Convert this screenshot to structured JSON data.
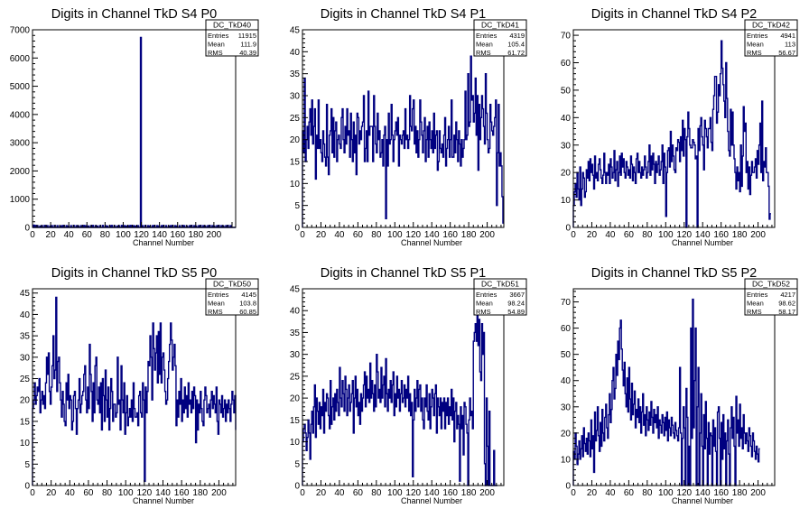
{
  "chart_data": [
    {
      "type": "histogram",
      "title": "Digits in Channel TkD S4 P0",
      "xlabel": "Channel Number",
      "xlim": [
        0,
        224
      ],
      "ylim": [
        0,
        7000
      ],
      "xticks": [
        0,
        20,
        40,
        60,
        80,
        100,
        120,
        140,
        160,
        180,
        200
      ],
      "yticks": [
        1000,
        2000,
        3000,
        4000,
        5000,
        6000,
        7000
      ],
      "stats": {
        "name": "DC_TkD40",
        "entries": "11915",
        "mean": "111.9",
        "rms": "40.39"
      },
      "bin_width": 1,
      "x_start": 0,
      "values": [
        0,
        80,
        0,
        70,
        0,
        60,
        0,
        0,
        50,
        0,
        60,
        0,
        0,
        70,
        0,
        0,
        60,
        0,
        0,
        50,
        0,
        60,
        0,
        0,
        70,
        0,
        0,
        60,
        0,
        0,
        50,
        0,
        60,
        0,
        70,
        0,
        0,
        60,
        0,
        50,
        0,
        0,
        60,
        0,
        0,
        70,
        0,
        0,
        60,
        0,
        50,
        0,
        0,
        60,
        0,
        0,
        70,
        0,
        60,
        0,
        0,
        50,
        0,
        0,
        60,
        0,
        70,
        0,
        0,
        60,
        0,
        50,
        0,
        0,
        60,
        0,
        0,
        70,
        0,
        0,
        60,
        0,
        50,
        0,
        0,
        60,
        0,
        70,
        0,
        0,
        60,
        0,
        0,
        50,
        0,
        60,
        0,
        0,
        70,
        0,
        0,
        60,
        0,
        50,
        0,
        0,
        60,
        0,
        70,
        0,
        0,
        60,
        0,
        50,
        0,
        0,
        60,
        0,
        0,
        6730,
        0,
        60,
        0,
        0,
        70,
        0,
        0,
        60,
        0,
        50,
        0,
        0,
        60,
        0,
        70,
        0,
        0,
        60,
        0,
        50,
        0,
        0,
        60,
        0,
        70,
        0,
        0,
        60,
        0,
        0,
        50,
        0,
        60,
        0,
        70,
        0,
        0,
        60,
        0,
        50,
        0,
        0,
        60,
        0,
        0,
        70,
        0,
        60,
        0,
        0,
        50,
        0,
        0,
        60,
        0,
        70,
        0,
        0,
        60,
        0,
        50,
        0,
        0,
        60,
        0,
        70,
        0,
        0,
        60,
        0,
        50,
        0,
        0,
        60,
        0,
        70,
        0,
        0,
        60,
        0,
        50,
        0,
        0,
        60,
        0,
        70,
        0,
        0,
        60,
        0,
        50,
        0,
        0,
        60,
        0,
        70,
        0,
        0,
        60,
        0,
        0,
        0,
        0,
        0,
        0,
        0
      ]
    },
    {
      "type": "histogram",
      "title": "Digits in Channel TkD S4 P1",
      "xlabel": "Channel Number",
      "xlim": [
        0,
        218
      ],
      "ylim": [
        0,
        45
      ],
      "xticks": [
        0,
        20,
        40,
        60,
        80,
        100,
        120,
        140,
        160,
        180,
        200
      ],
      "yticks": [
        5,
        10,
        15,
        20,
        25,
        30,
        35,
        40,
        45
      ],
      "stats": {
        "name": "DC_TkD41",
        "entries": "4319",
        "mean": "105.4",
        "rms": "61.72"
      },
      "bin_width": 1,
      "x_start": 0,
      "values": [
        22,
        17,
        34,
        15,
        20,
        23,
        18,
        24,
        27,
        21,
        29,
        19,
        23,
        27,
        11,
        21,
        18,
        29,
        18,
        20,
        17,
        15,
        22,
        19,
        16,
        14,
        28,
        16,
        12,
        21,
        22,
        27,
        17,
        25,
        16,
        22,
        24,
        15,
        20,
        21,
        19,
        18,
        25,
        27,
        20,
        17,
        23,
        19,
        27,
        21,
        22,
        16,
        26,
        20,
        15,
        24,
        17,
        21,
        12,
        26,
        25,
        19,
        22,
        20,
        23,
        24,
        30,
        15,
        18,
        22,
        15,
        31,
        21,
        23,
        23,
        23,
        15,
        30,
        23,
        19,
        17,
        26,
        20,
        22,
        16,
        17,
        20,
        14,
        21,
        23,
        2,
        20,
        14,
        26,
        19,
        20,
        28,
        21,
        15,
        20,
        22,
        24,
        21,
        25,
        14,
        21,
        20,
        19,
        21,
        22,
        18,
        27,
        20,
        21,
        18,
        20,
        30,
        23,
        22,
        27,
        29,
        19,
        23,
        17,
        22,
        16,
        20,
        29,
        24,
        21,
        17,
        22,
        25,
        15,
        20,
        23,
        16,
        24,
        20,
        18,
        22,
        17,
        26,
        18,
        21,
        22,
        13,
        15,
        22,
        18,
        17,
        19,
        16,
        21,
        25,
        14,
        18,
        20,
        23,
        16,
        20,
        29,
        16,
        16,
        21,
        17,
        24,
        20,
        15,
        22,
        19,
        14,
        20,
        16,
        18,
        20,
        31,
        20,
        21,
        35,
        23,
        24,
        39,
        29,
        30,
        24,
        26,
        34,
        21,
        30,
        13,
        28,
        20,
        25,
        30,
        27,
        23,
        19,
        35,
        26,
        20,
        17,
        18,
        28,
        24,
        22,
        21,
        23,
        25,
        29,
        5,
        17,
        28,
        14,
        17,
        14,
        7,
        1
      ]
    },
    {
      "type": "histogram",
      "title": "Digits in Channel TkD S4 P2",
      "xlabel": "Channel Number",
      "xlim": [
        0,
        218
      ],
      "ylim": [
        0,
        72
      ],
      "xticks": [
        0,
        20,
        40,
        60,
        80,
        100,
        120,
        140,
        160,
        180,
        200
      ],
      "yticks": [
        10,
        20,
        30,
        40,
        50,
        60,
        70
      ],
      "stats": {
        "name": "DC_TkD42",
        "entries": "4941",
        "mean": "113",
        "rms": "56.67"
      },
      "bin_width": 1,
      "x_start": 0,
      "values": [
        8,
        13,
        16,
        11,
        20,
        14,
        10,
        22,
        8,
        14,
        20,
        18,
        11,
        13,
        21,
        18,
        24,
        17,
        25,
        20,
        23,
        19,
        14,
        26,
        18,
        20,
        17,
        23,
        25,
        21,
        18,
        16,
        19,
        27,
        20,
        16,
        20,
        19,
        23,
        16,
        25,
        22,
        18,
        20,
        28,
        17,
        21,
        24,
        15,
        20,
        26,
        19,
        27,
        22,
        25,
        20,
        18,
        24,
        22,
        19,
        21,
        18,
        26,
        23,
        17,
        22,
        20,
        16,
        25,
        27,
        20,
        24,
        20,
        18,
        22,
        19,
        21,
        26,
        22,
        18,
        20,
        24,
        30,
        19,
        26,
        21,
        27,
        23,
        16,
        24,
        20,
        23,
        26,
        19,
        21,
        24,
        30,
        16,
        27,
        22,
        4,
        20,
        28,
        29,
        22,
        35,
        24,
        30,
        26,
        21,
        20,
        29,
        28,
        32,
        31,
        24,
        33,
        28,
        39,
        26,
        36,
        32,
        0,
        33,
        42,
        36,
        30,
        29,
        29,
        32,
        31,
        30,
        25,
        26,
        0,
        36,
        28,
        37,
        40,
        33,
        30,
        21,
        39,
        36,
        33,
        29,
        36,
        36,
        40,
        31,
        28,
        43,
        48,
        55,
        55,
        38,
        42,
        52,
        48,
        56,
        68,
        58,
        52,
        46,
        40,
        60,
        47,
        35,
        28,
        26,
        43,
        30,
        42,
        30,
        25,
        20,
        14,
        22,
        17,
        20,
        13,
        30,
        15,
        26,
        44,
        35,
        38,
        20,
        24,
        14,
        22,
        12,
        19,
        24,
        20,
        20,
        22,
        25,
        18,
        28,
        23,
        30,
        38,
        20,
        46,
        17,
        24,
        22,
        29,
        20,
        20,
        15,
        3,
        5
      ]
    },
    {
      "type": "histogram",
      "title": "Digits in Channel TkD S5 P0",
      "xlabel": "Channel Number",
      "xlim": [
        0,
        218
      ],
      "ylim": [
        0,
        46
      ],
      "xticks": [
        0,
        20,
        40,
        60,
        80,
        100,
        120,
        140,
        160,
        180,
        200
      ],
      "yticks": [
        5,
        10,
        15,
        20,
        25,
        30,
        35,
        40,
        45
      ],
      "stats": {
        "name": "DC_TkD50",
        "entries": "4145",
        "mean": "103.8",
        "rms": "60.85"
      },
      "bin_width": 1,
      "x_start": 0,
      "values": [
        18,
        20,
        24,
        19,
        21,
        23,
        22,
        25,
        17,
        20,
        22,
        19,
        21,
        18,
        24,
        30,
        26,
        31,
        22,
        19,
        23,
        28,
        35,
        25,
        27,
        44,
        22,
        29,
        30,
        24,
        20,
        16,
        22,
        19,
        15,
        14,
        24,
        20,
        26,
        18,
        21,
        20,
        13,
        15,
        21,
        22,
        18,
        12,
        18,
        20,
        25,
        17,
        19,
        21,
        22,
        26,
        28,
        20,
        17,
        23,
        18,
        33,
        26,
        22,
        15,
        24,
        17,
        28,
        30,
        20,
        19,
        23,
        17,
        24,
        13,
        25,
        21,
        15,
        27,
        20,
        16,
        23,
        13,
        18,
        25,
        22,
        15,
        19,
        19,
        16,
        17,
        30,
        19,
        20,
        13,
        28,
        20,
        17,
        24,
        12,
        17,
        21,
        14,
        16,
        18,
        16,
        20,
        15,
        24,
        18,
        16,
        16,
        17,
        14,
        21,
        22,
        17,
        16,
        24,
        20,
        1,
        23,
        17,
        22,
        29,
        28,
        35,
        30,
        20,
        38,
        32,
        27,
        31,
        35,
        24,
        36,
        26,
        38,
        24,
        30,
        31,
        27,
        22,
        19,
        20,
        25,
        29,
        33,
        38,
        34,
        27,
        30,
        33,
        28,
        14,
        20,
        16,
        22,
        19,
        25,
        15,
        20,
        17,
        23,
        18,
        21,
        16,
        24,
        19,
        20,
        17,
        22,
        18,
        23,
        21,
        10,
        20,
        13,
        19,
        17,
        22,
        18,
        15,
        14,
        20,
        23,
        21,
        17,
        18,
        19,
        16,
        20,
        22,
        18,
        21,
        19,
        17,
        23,
        15,
        12,
        20,
        19,
        17,
        21,
        16,
        18,
        20,
        15,
        19,
        17,
        20,
        18,
        15,
        19,
        22,
        20,
        17,
        21,
        13,
        1
      ]
    },
    {
      "type": "histogram",
      "title": "Digits in Channel TkD S5 P1",
      "xlabel": "Channel Number",
      "xlim": [
        0,
        218
      ],
      "ylim": [
        0,
        45
      ],
      "xticks": [
        0,
        20,
        40,
        60,
        80,
        100,
        120,
        140,
        160,
        180,
        200
      ],
      "yticks": [
        5,
        10,
        15,
        20,
        25,
        30,
        35,
        40,
        45
      ],
      "stats": {
        "name": "DC_TkD51",
        "entries": "3667",
        "mean": "98.24",
        "rms": "54.89"
      },
      "bin_width": 1,
      "x_start": 0,
      "values": [
        10,
        13,
        14,
        12,
        8,
        11,
        15,
        12,
        6,
        14,
        17,
        12,
        18,
        23,
        11,
        20,
        17,
        14,
        19,
        13,
        18,
        16,
        22,
        12,
        19,
        17,
        21,
        20,
        16,
        13,
        24,
        14,
        18,
        20,
        15,
        21,
        17,
        22,
        19,
        16,
        27,
        20,
        18,
        24,
        21,
        17,
        25,
        22,
        16,
        20,
        23,
        17,
        19,
        21,
        24,
        12,
        20,
        25,
        18,
        22,
        16,
        19,
        14,
        21,
        17,
        20,
        23,
        26,
        18,
        25,
        20,
        22,
        19,
        28,
        20,
        24,
        21,
        17,
        23,
        18,
        30,
        26,
        20,
        22,
        19,
        27,
        20,
        23,
        25,
        18,
        29,
        21,
        17,
        22,
        20,
        24,
        19,
        23,
        26,
        16,
        21,
        18,
        25,
        20,
        22,
        17,
        21,
        24,
        19,
        20,
        23,
        18,
        22,
        20,
        25,
        17,
        21,
        16,
        19,
        2,
        15,
        22,
        17,
        20,
        24,
        18,
        22,
        23,
        17,
        20,
        15,
        13,
        20,
        18,
        23,
        17,
        15,
        21,
        13,
        18,
        22,
        20,
        16,
        21,
        23,
        12,
        20,
        18,
        16,
        20,
        13,
        19,
        17,
        20,
        13,
        19,
        16,
        20,
        14,
        18,
        16,
        22,
        15,
        20,
        10,
        17,
        19,
        13,
        16,
        14,
        1,
        18,
        13,
        16,
        7,
        19,
        18,
        14,
        12,
        0,
        15,
        20,
        16,
        17,
        13,
        33,
        35,
        37,
        33,
        40,
        32,
        38,
        26,
        24,
        37,
        30,
        35,
        5,
        0,
        20,
        9,
        0,
        17,
        0,
        0,
        0,
        0,
        8,
        0,
        0,
        0
      ]
    },
    {
      "type": "histogram",
      "title": "Digits in Channel TkD S5 P2",
      "xlabel": "Channel Number",
      "xlim": [
        0,
        218
      ],
      "ylim": [
        0,
        75
      ],
      "xticks": [
        0,
        20,
        40,
        60,
        80,
        100,
        120,
        140,
        160,
        180,
        200
      ],
      "yticks": [
        10,
        20,
        30,
        40,
        50,
        60,
        70
      ],
      "stats": {
        "name": "DC_TkD52",
        "entries": "4217",
        "mean": "98.62",
        "rms": "58.17"
      },
      "bin_width": 1,
      "x_start": 0,
      "values": [
        13,
        10,
        20,
        15,
        8,
        12,
        17,
        10,
        14,
        19,
        11,
        22,
        16,
        13,
        18,
        12,
        20,
        17,
        11,
        25,
        14,
        19,
        5,
        28,
        17,
        21,
        30,
        19,
        13,
        24,
        15,
        29,
        20,
        17,
        26,
        31,
        22,
        18,
        27,
        35,
        24,
        29,
        40,
        45,
        33,
        37,
        50,
        42,
        55,
        48,
        60,
        63,
        52,
        44,
        38,
        47,
        35,
        30,
        41,
        28,
        45,
        33,
        25,
        39,
        27,
        31,
        36,
        22,
        29,
        26,
        33,
        24,
        30,
        20,
        28,
        35,
        23,
        27,
        19,
        30,
        25,
        21,
        28,
        23,
        32,
        26,
        20,
        29,
        24,
        27,
        22,
        30,
        18,
        25,
        23,
        20,
        27,
        24,
        19,
        26,
        21,
        28,
        17,
        25,
        22,
        19,
        26,
        23,
        20,
        18,
        24,
        21,
        19,
        17,
        22,
        45,
        20,
        0,
        18,
        30,
        22,
        0,
        37,
        26,
        0,
        15,
        0,
        60,
        18,
        71,
        22,
        40,
        60,
        0,
        30,
        45,
        0,
        20,
        35,
        15,
        0,
        27,
        14,
        32,
        18,
        0,
        24,
        12,
        20,
        19,
        0,
        25,
        15,
        22,
        13,
        0,
        28,
        30,
        18,
        0,
        24,
        10,
        27,
        14,
        20,
        0,
        17,
        25,
        12,
        0,
        22,
        30,
        18,
        26,
        15,
        0,
        34,
        20,
        25,
        15,
        31,
        18,
        22,
        14,
        27,
        20,
        16,
        20,
        17,
        13,
        22,
        19,
        15,
        11,
        20,
        17,
        13,
        10,
        15,
        12,
        9,
        14
      ]
    }
  ]
}
